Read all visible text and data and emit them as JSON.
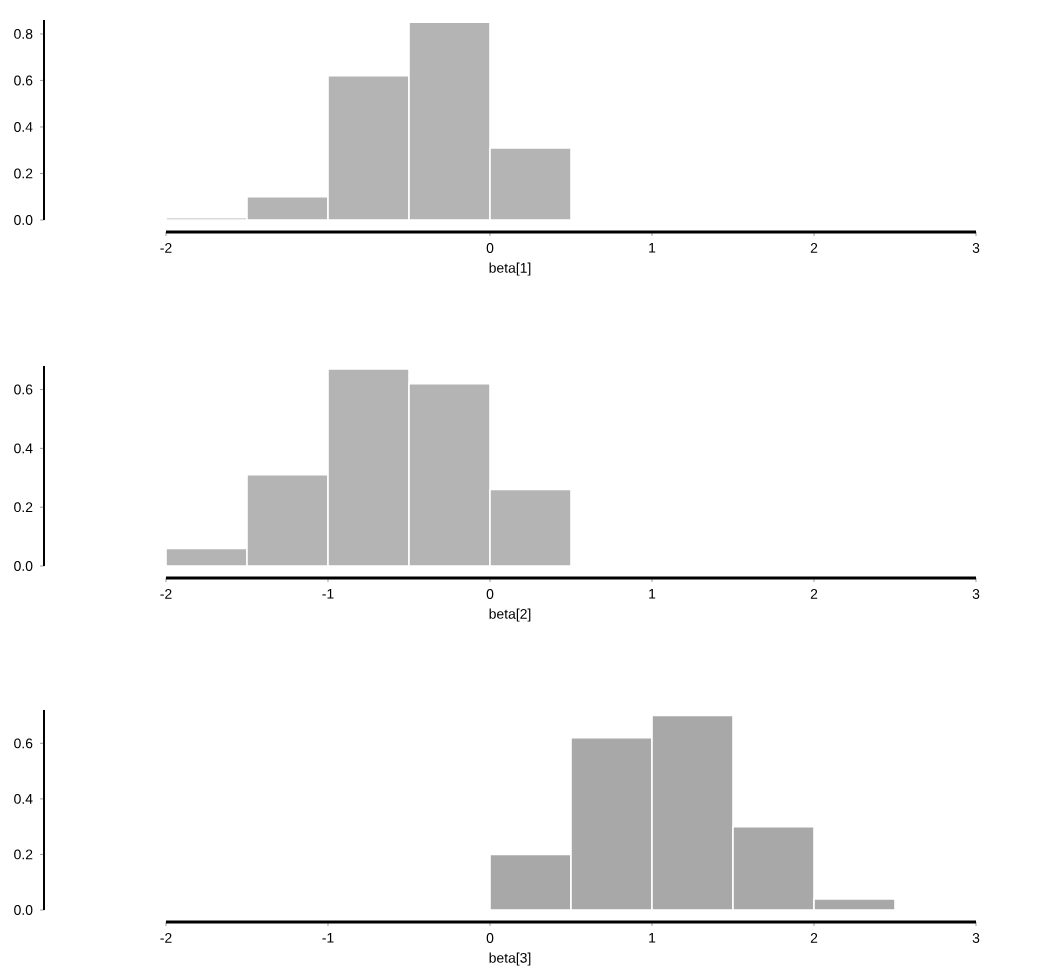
{
  "chart_data": [
    {
      "type": "histogram",
      "xlabel": "beta[1]",
      "bins": [
        -2,
        -1.5,
        -1,
        -0.5,
        0,
        0.5
      ],
      "values": [
        0.01,
        0.1,
        0.62,
        0.85,
        0.31
      ],
      "color": "#b4b4b4",
      "xlim": [
        -2,
        3
      ],
      "xticks": [
        {
          "value": -2,
          "label": "-2"
        },
        {
          "value": 0,
          "label": "0"
        },
        {
          "value": 1,
          "label": "1"
        },
        {
          "value": 2,
          "label": "2"
        },
        {
          "value": 3,
          "label": "3"
        }
      ],
      "ylim": [
        0,
        0.86
      ],
      "yticks": [
        {
          "value": 0,
          "label": "0.0"
        },
        {
          "value": 0.2,
          "label": "0.2"
        },
        {
          "value": 0.4,
          "label": "0.4"
        },
        {
          "value": 0.6,
          "label": "0.6"
        },
        {
          "value": 0.8,
          "label": "0.8"
        }
      ]
    },
    {
      "type": "histogram",
      "xlabel": "beta[2]",
      "bins": [
        -2,
        -1.5,
        -1,
        -0.5,
        0,
        0.5
      ],
      "values": [
        0.06,
        0.31,
        0.67,
        0.62,
        0.26
      ],
      "color": "#b4b4b4",
      "xlim": [
        -2,
        3
      ],
      "xticks": [
        {
          "value": -2,
          "label": "-2"
        },
        {
          "value": -1,
          "label": "-1"
        },
        {
          "value": 0,
          "label": "0"
        },
        {
          "value": 1,
          "label": "1"
        },
        {
          "value": 2,
          "label": "2"
        },
        {
          "value": 3,
          "label": "3"
        }
      ],
      "ylim": [
        0,
        0.68
      ],
      "yticks": [
        {
          "value": 0,
          "label": "0.0"
        },
        {
          "value": 0.2,
          "label": "0.2"
        },
        {
          "value": 0.4,
          "label": "0.4"
        },
        {
          "value": 0.6,
          "label": "0.6"
        }
      ]
    },
    {
      "type": "histogram",
      "xlabel": "beta[3]",
      "bins": [
        0,
        0.5,
        1,
        1.5,
        2,
        2.5
      ],
      "values": [
        0.2,
        0.62,
        0.7,
        0.3,
        0.04
      ],
      "color": "#a8a8a8",
      "xlim": [
        -2,
        3
      ],
      "xticks": [
        {
          "value": -2,
          "label": "-2"
        },
        {
          "value": -1,
          "label": "-1"
        },
        {
          "value": 0,
          "label": "0"
        },
        {
          "value": 1,
          "label": "1"
        },
        {
          "value": 2,
          "label": "2"
        },
        {
          "value": 3,
          "label": "3"
        }
      ],
      "ylim": [
        0,
        0.72
      ],
      "yticks": [
        {
          "value": 0,
          "label": "0.0"
        },
        {
          "value": 0.2,
          "label": "0.2"
        },
        {
          "value": 0.4,
          "label": "0.4"
        },
        {
          "value": 0.6,
          "label": "0.6"
        }
      ]
    }
  ]
}
